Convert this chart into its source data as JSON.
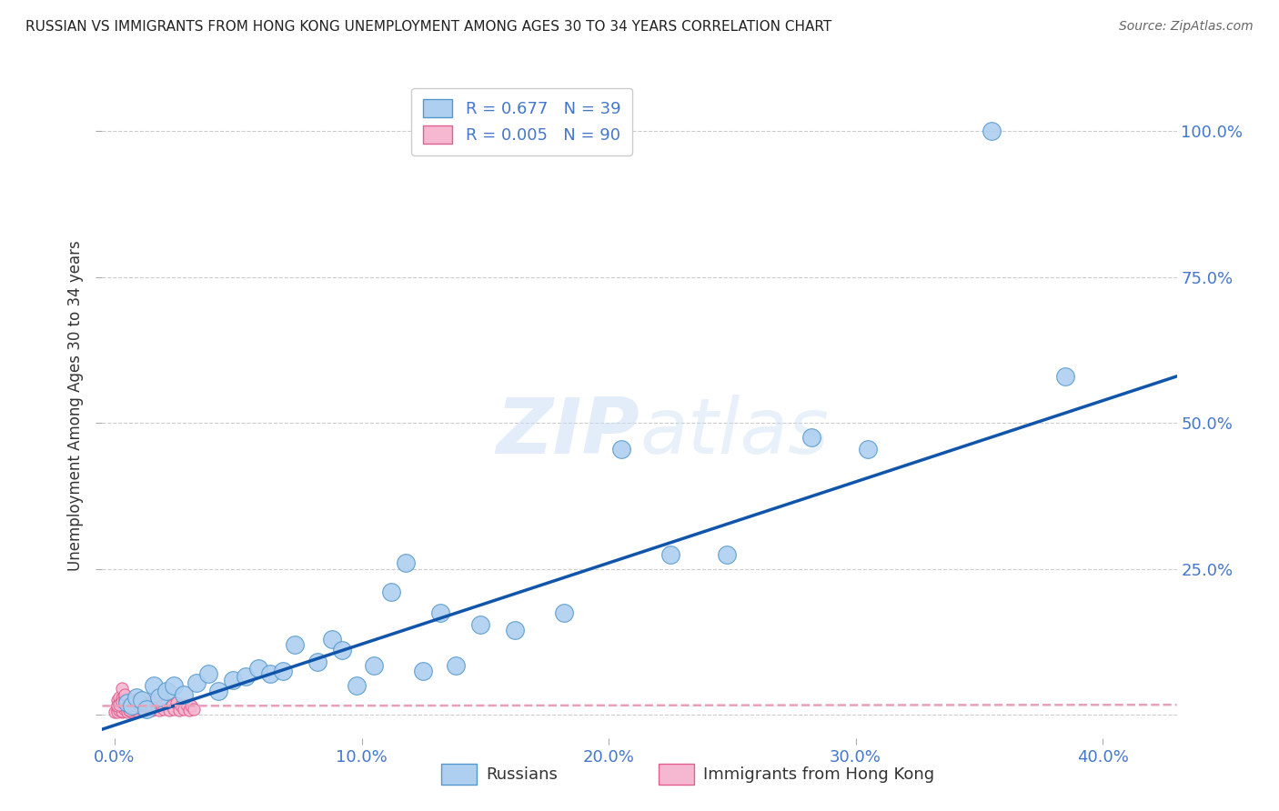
{
  "title": "RUSSIAN VS IMMIGRANTS FROM HONG KONG UNEMPLOYMENT AMONG AGES 30 TO 34 YEARS CORRELATION CHART",
  "source": "Source: ZipAtlas.com",
  "xlabel_ticks": [
    "0.0%",
    "10.0%",
    "20.0%",
    "30.0%",
    "40.0%"
  ],
  "xlabel_tick_vals": [
    0.0,
    0.1,
    0.2,
    0.3,
    0.4
  ],
  "ylabel": "Unemployment Among Ages 30 to 34 years",
  "ylabel_ticks": [
    "",
    "25.0%",
    "50.0%",
    "75.0%",
    "100.0%"
  ],
  "ylabel_tick_vals": [
    0.0,
    0.25,
    0.5,
    0.75,
    1.0
  ],
  "xlim": [
    -0.005,
    0.43
  ],
  "ylim": [
    -0.04,
    1.1
  ],
  "watermark_line1": "ZIP",
  "watermark_line2": "atlas",
  "legend_russian_R": " 0.677",
  "legend_russian_N": "39",
  "legend_hk_R": "0.005",
  "legend_hk_N": "90",
  "russian_color": "#aecff0",
  "russian_edge_color": "#5599cc",
  "hk_color": "#f5b8d0",
  "hk_edge_color": "#e06090",
  "trendline_russian_color": "#1155aa",
  "trendline_hk_color": "#e8a0b8",
  "grid_color": "#cccccc",
  "title_color": "#222222",
  "source_color": "#666666",
  "tick_color": "#4477cc",
  "background_color": "#ffffff",
  "russians_x": [
    0.005,
    0.007,
    0.009,
    0.011,
    0.013,
    0.016,
    0.018,
    0.021,
    0.024,
    0.028,
    0.033,
    0.038,
    0.042,
    0.048,
    0.053,
    0.058,
    0.063,
    0.068,
    0.073,
    0.082,
    0.088,
    0.092,
    0.098,
    0.105,
    0.112,
    0.118,
    0.125,
    0.132,
    0.138,
    0.148,
    0.162,
    0.182,
    0.205,
    0.225,
    0.248,
    0.282,
    0.305,
    0.355,
    0.385
  ],
  "russians_y": [
    0.02,
    0.015,
    0.03,
    0.025,
    0.01,
    0.05,
    0.03,
    0.04,
    0.05,
    0.035,
    0.055,
    0.07,
    0.04,
    0.06,
    0.065,
    0.08,
    0.07,
    0.075,
    0.12,
    0.09,
    0.13,
    0.11,
    0.05,
    0.085,
    0.21,
    0.26,
    0.075,
    0.175,
    0.085,
    0.155,
    0.145,
    0.175,
    0.455,
    0.275,
    0.275,
    0.475,
    0.455,
    1.0,
    0.58
  ],
  "hk_x": [
    0.0,
    0.001,
    0.001,
    0.002,
    0.002,
    0.003,
    0.003,
    0.004,
    0.004,
    0.005,
    0.005,
    0.005,
    0.006,
    0.006,
    0.007,
    0.007,
    0.008,
    0.008,
    0.009,
    0.009,
    0.01,
    0.01,
    0.011,
    0.011,
    0.012,
    0.012,
    0.013,
    0.013,
    0.014,
    0.014,
    0.015,
    0.015,
    0.016,
    0.016,
    0.017,
    0.018,
    0.019,
    0.02,
    0.021,
    0.022,
    0.023,
    0.024,
    0.025,
    0.026,
    0.027,
    0.028,
    0.029,
    0.03,
    0.031,
    0.032,
    0.001,
    0.002,
    0.003,
    0.004,
    0.005,
    0.006,
    0.007,
    0.008,
    0.009,
    0.01,
    0.001,
    0.002,
    0.003,
    0.004,
    0.005,
    0.006,
    0.007,
    0.008,
    0.009,
    0.01,
    0.001,
    0.002,
    0.003,
    0.004,
    0.003,
    0.005,
    0.006,
    0.004,
    0.007,
    0.008,
    0.006,
    0.007,
    0.008,
    0.009,
    0.01,
    0.011,
    0.008,
    0.012,
    0.009,
    0.013
  ],
  "hk_y": [
    0.005,
    0.01,
    0.015,
    0.008,
    0.02,
    0.005,
    0.018,
    0.012,
    0.025,
    0.008,
    0.015,
    0.02,
    0.01,
    0.022,
    0.008,
    0.018,
    0.012,
    0.025,
    0.008,
    0.015,
    0.01,
    0.02,
    0.008,
    0.018,
    0.012,
    0.022,
    0.008,
    0.016,
    0.01,
    0.02,
    0.008,
    0.018,
    0.01,
    0.022,
    0.012,
    0.008,
    0.015,
    0.01,
    0.02,
    0.008,
    0.015,
    0.01,
    0.02,
    0.008,
    0.015,
    0.01,
    0.018,
    0.008,
    0.015,
    0.01,
    0.025,
    0.03,
    0.028,
    0.032,
    0.022,
    0.028,
    0.018,
    0.024,
    0.018,
    0.022,
    0.005,
    0.008,
    0.006,
    0.01,
    0.004,
    0.008,
    0.005,
    0.009,
    0.006,
    0.012,
    0.015,
    0.018,
    0.022,
    0.025,
    0.045,
    0.015,
    0.012,
    0.035,
    0.01,
    0.02,
    0.008,
    0.012,
    0.018,
    0.015,
    0.025,
    0.01,
    0.02,
    0.015,
    0.022,
    0.018
  ],
  "trendline_rus_x0": -0.005,
  "trendline_rus_x1": 0.43,
  "trendline_rus_y0": -0.025,
  "trendline_rus_y1": 0.58,
  "trendline_hk_x0": -0.005,
  "trendline_hk_x1": 0.43,
  "trendline_hk_y0": 0.015,
  "trendline_hk_y1": 0.017
}
